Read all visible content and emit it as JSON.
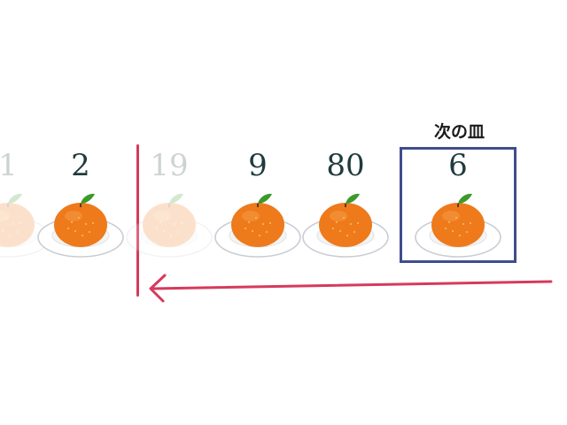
{
  "game": {
    "next_plate_label": "次の皿",
    "plates": [
      {
        "number": "1",
        "faded": true
      },
      {
        "number": "2",
        "faded": false
      },
      {
        "number": "19",
        "faded": true
      },
      {
        "number": "9",
        "faded": false
      },
      {
        "number": "80",
        "faded": false
      },
      {
        "number": "6",
        "faded": false,
        "next": true
      }
    ]
  },
  "colors": {
    "number_text": "#1f3b3d",
    "next_box_border": "#3f4d8c",
    "divider": "#d63a5c",
    "arrow": "#d63a5c",
    "orange": "#ee7a1b",
    "leaf": "#3c9a2c",
    "plate": "#f4f4f4"
  },
  "icons": {
    "fruit": "mandarin-orange-icon",
    "dish": "plate-icon"
  }
}
